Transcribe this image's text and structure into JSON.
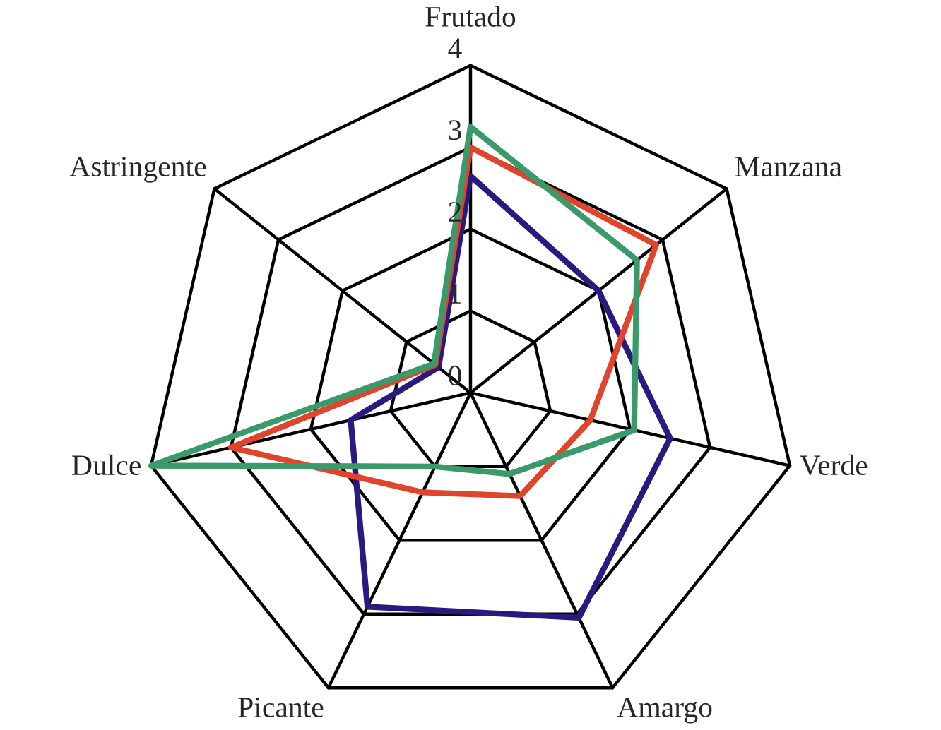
{
  "chart_data": {
    "type": "radar",
    "categories": [
      "Frutado",
      "Manzana",
      "Verde",
      "Amargo",
      "Picante",
      "Dulce",
      "Astringente"
    ],
    "ylim": [
      0,
      4
    ],
    "yticks": [
      0,
      1,
      2,
      3,
      4
    ],
    "grid": true,
    "series": [
      {
        "color": "#2a1a80",
        "values": [
          2.65,
          2.0,
          2.5,
          3.05,
          2.9,
          1.5,
          0.5
        ]
      },
      {
        "color": "#e0442a",
        "values": [
          3.0,
          2.9,
          1.5,
          1.4,
          1.35,
          3.0,
          0.55
        ]
      },
      {
        "color": "#3a9a6a",
        "values": [
          3.25,
          2.6,
          2.05,
          1.1,
          1.0,
          4.0,
          0.57
        ]
      }
    ]
  }
}
